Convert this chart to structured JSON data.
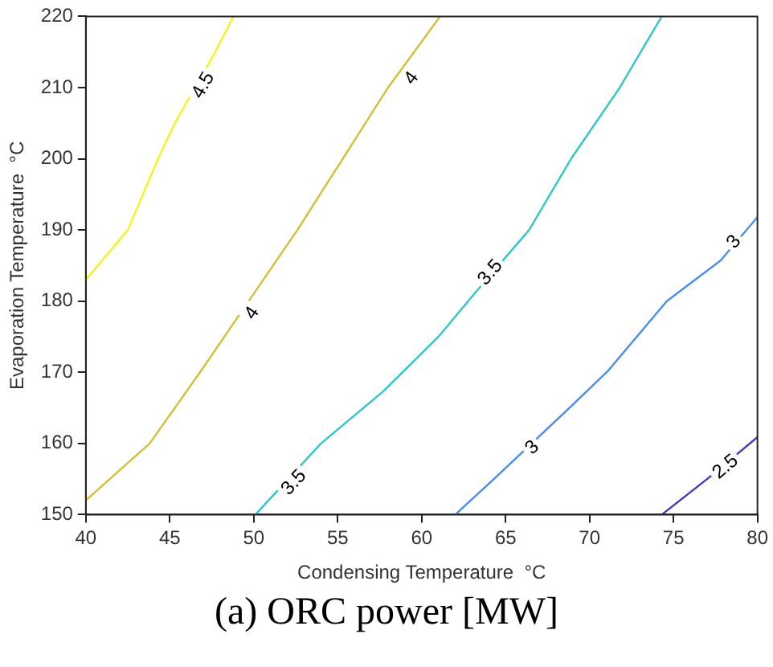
{
  "chart_data": {
    "type": "line",
    "title": "(a) ORC power [MW]",
    "xlabel": "Condensing Temperature  °C",
    "ylabel": "Evaporation Temperature  °C",
    "xlim": [
      40,
      80
    ],
    "xticks": [
      40,
      45,
      50,
      55,
      60,
      65,
      70,
      75,
      80
    ],
    "ylim": [
      150,
      220
    ],
    "yticks": [
      150,
      160,
      170,
      180,
      190,
      200,
      210,
      220
    ],
    "legend": false,
    "marker": "none",
    "line_style": "solid",
    "series": [
      {
        "color": "#f5f51e",
        "x": [
          40,
          42.5,
          44.3,
          45.3,
          47.7,
          48.8
        ],
        "values": [
          183,
          190,
          200,
          205,
          215,
          220
        ]
      },
      {
        "color": "#d2bf34",
        "x": [
          40,
          43.8,
          46.8,
          49.7,
          52.6,
          55.3,
          58,
          61.1
        ],
        "values": [
          152,
          160,
          170,
          180,
          190,
          200,
          210,
          220
        ]
      },
      {
        "color": "#2ec8c8",
        "x": [
          50.1,
          54,
          57.7,
          61,
          63.3,
          66.4,
          68.9,
          71.8,
          74.3
        ],
        "values": [
          150,
          160,
          167.3,
          175,
          181.5,
          190,
          200,
          210,
          220
        ]
      },
      {
        "color": "#4a8cf5",
        "x": [
          62,
          64.3,
          68.8,
          71.1,
          74.6,
          77.8,
          80
        ],
        "values": [
          150,
          155,
          165,
          170.2,
          180,
          185.7,
          191.8
        ]
      },
      {
        "color": "#4a35c0",
        "x": [
          74.3,
          77,
          80
        ],
        "values": [
          150,
          155,
          160.9
        ]
      }
    ],
    "annotations": [
      {
        "text": "4.5",
        "x": 47,
        "y": 210.3
      },
      {
        "text": "4",
        "x": 59.4,
        "y": 211.3
      },
      {
        "text": "4",
        "x": 49.9,
        "y": 178.3
      },
      {
        "text": "3.5",
        "x": 64.1,
        "y": 184
      },
      {
        "text": "3.5",
        "x": 52.4,
        "y": 154.5
      },
      {
        "text": "3",
        "x": 78.6,
        "y": 188.3
      },
      {
        "text": "3",
        "x": 66.6,
        "y": 159.4
      },
      {
        "text": "2.5",
        "x": 78.1,
        "y": 156.7
      }
    ]
  }
}
